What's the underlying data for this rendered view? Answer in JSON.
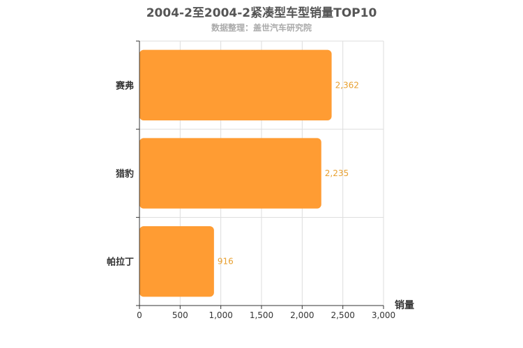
{
  "chart_data": {
    "type": "bar",
    "orientation": "horizontal",
    "title": "2004-2至2004-2紧凑型车型销量TOP10",
    "subtitle": "数据整理：盖世汽车研究院",
    "categories": [
      "赛弗",
      "猎豹",
      "帕拉丁"
    ],
    "values": [
      2362,
      2235,
      916
    ],
    "value_labels": [
      "2,362",
      "2,235",
      "916"
    ],
    "xlabel": "销量",
    "xlim": [
      0,
      3000
    ],
    "xticks": [
      "0",
      "500",
      "1,000",
      "1,500",
      "2,000",
      "2,500",
      "3,000"
    ],
    "grid": true,
    "bar_color": "#ff9c33",
    "label_color": "#e8a030"
  }
}
